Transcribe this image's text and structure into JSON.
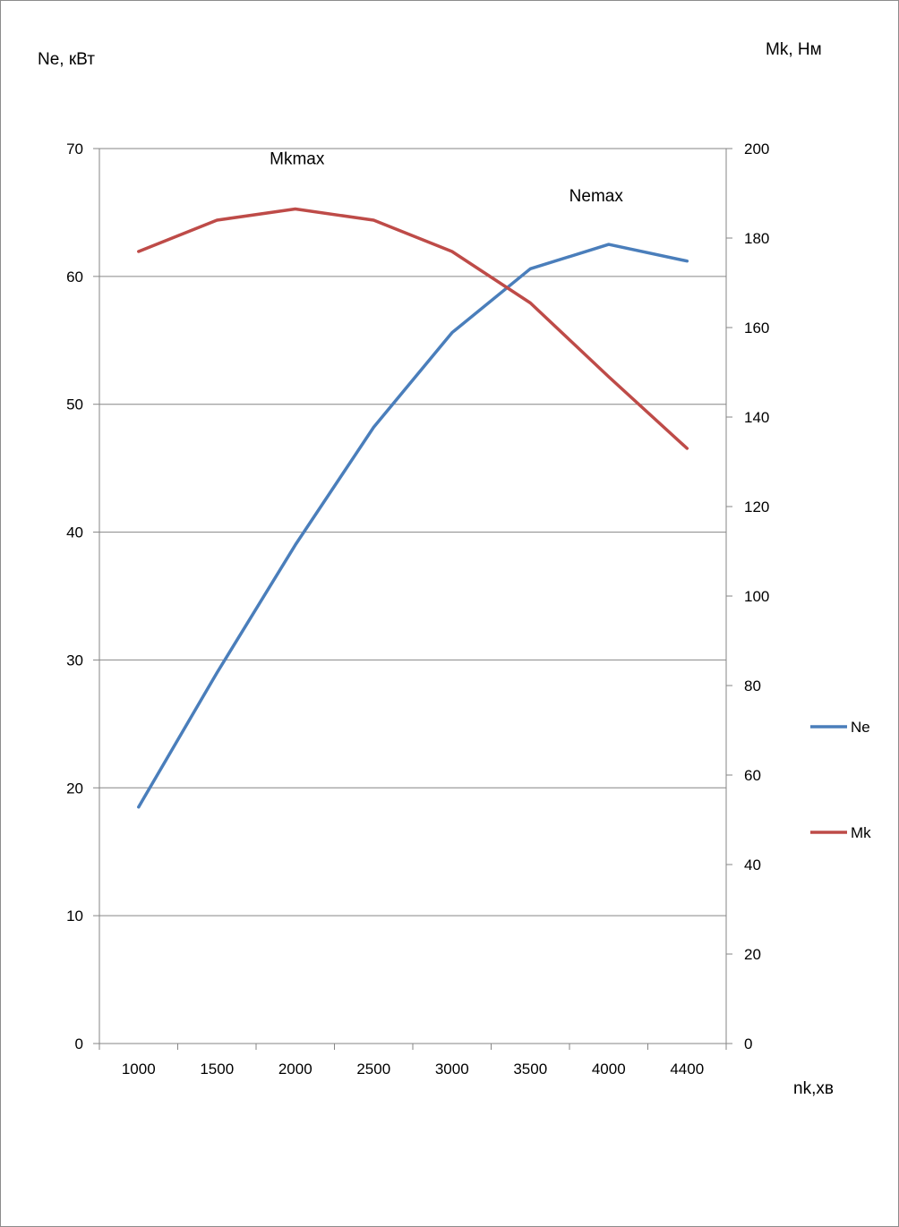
{
  "chart_data": {
    "type": "line",
    "title": "",
    "categories": [
      "1000",
      "1500",
      "2000",
      "2500",
      "3000",
      "3500",
      "4000",
      "4400"
    ],
    "series": [
      {
        "name": "Ne",
        "axis": "left",
        "color": "#4a7ebb",
        "values": [
          18.5,
          29.0,
          39.0,
          48.2,
          55.6,
          60.6,
          62.5,
          61.2
        ]
      },
      {
        "name": "Mk",
        "axis": "right",
        "color": "#be4b48",
        "values": [
          177,
          184,
          186.5,
          184,
          177,
          165.5,
          149,
          133
        ]
      }
    ],
    "ylabel": "Ne, кВт",
    "y2label": "Mk, Нм",
    "xlabel": "nk,хв",
    "ylim": [
      0,
      70
    ],
    "y2lim": [
      0,
      200
    ],
    "yticks": [
      "0",
      "10",
      "20",
      "30",
      "40",
      "50",
      "60",
      "70"
    ],
    "y2ticks": [
      "0",
      "20",
      "40",
      "60",
      "80",
      "100",
      "120",
      "140",
      "160",
      "180",
      "200"
    ],
    "annotations": [
      {
        "text": "Mkmax",
        "category": "2000",
        "series": "Mk"
      },
      {
        "text": "Nemax",
        "category": "4000",
        "series": "Ne"
      }
    ],
    "legend": "right",
    "grid": "horizontal"
  }
}
